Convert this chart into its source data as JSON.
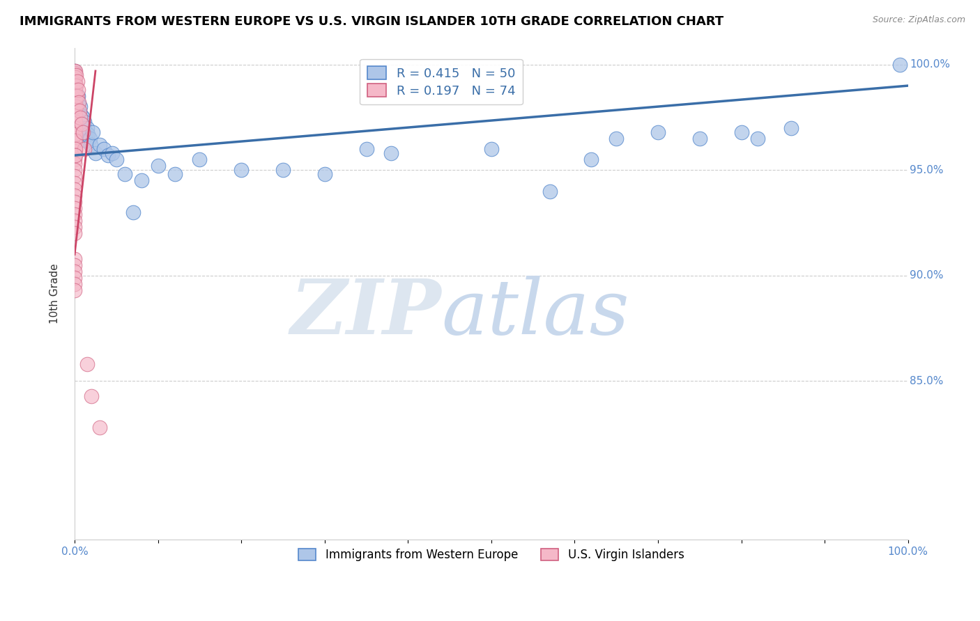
{
  "title": "IMMIGRANTS FROM WESTERN EUROPE VS U.S. VIRGIN ISLANDER 10TH GRADE CORRELATION CHART",
  "source": "Source: ZipAtlas.com",
  "ylabel": "10th Grade",
  "xlim": [
    0.0,
    1.0
  ],
  "ylim": [
    0.775,
    1.008
  ],
  "blue_R": 0.415,
  "blue_N": 50,
  "pink_R": 0.197,
  "pink_N": 74,
  "blue_color": "#aec6e8",
  "pink_color": "#f5b8c8",
  "blue_edge_color": "#5588cc",
  "pink_edge_color": "#d06080",
  "blue_line_color": "#3a6ea8",
  "pink_line_color": "#cc4466",
  "grid_color": "#cccccc",
  "tick_color": "#5588cc",
  "ytick_positions": [
    0.85,
    0.9,
    0.95,
    1.0
  ],
  "ytick_labels": [
    "85.0%",
    "90.0%",
    "95.0%",
    "100.0%"
  ],
  "blue_dots": [
    [
      0.0,
      0.997
    ],
    [
      0.0,
      0.996
    ],
    [
      0.0,
      0.994
    ],
    [
      0.004,
      0.985
    ],
    [
      0.004,
      0.982
    ],
    [
      0.005,
      0.978
    ],
    [
      0.006,
      0.975
    ],
    [
      0.007,
      0.98
    ],
    [
      0.008,
      0.976
    ],
    [
      0.009,
      0.972
    ],
    [
      0.009,
      0.969
    ],
    [
      0.01,
      0.975
    ],
    [
      0.01,
      0.971
    ],
    [
      0.01,
      0.968
    ],
    [
      0.012,
      0.973
    ],
    [
      0.012,
      0.97
    ],
    [
      0.013,
      0.967
    ],
    [
      0.014,
      0.964
    ],
    [
      0.015,
      0.97
    ],
    [
      0.016,
      0.967
    ],
    [
      0.018,
      0.965
    ],
    [
      0.019,
      0.962
    ],
    [
      0.022,
      0.968
    ],
    [
      0.025,
      0.958
    ],
    [
      0.03,
      0.962
    ],
    [
      0.035,
      0.96
    ],
    [
      0.04,
      0.957
    ],
    [
      0.045,
      0.958
    ],
    [
      0.05,
      0.955
    ],
    [
      0.06,
      0.948
    ],
    [
      0.07,
      0.93
    ],
    [
      0.08,
      0.945
    ],
    [
      0.1,
      0.952
    ],
    [
      0.12,
      0.948
    ],
    [
      0.15,
      0.955
    ],
    [
      0.2,
      0.95
    ],
    [
      0.25,
      0.95
    ],
    [
      0.3,
      0.948
    ],
    [
      0.35,
      0.96
    ],
    [
      0.38,
      0.958
    ],
    [
      0.5,
      0.96
    ],
    [
      0.57,
      0.94
    ],
    [
      0.62,
      0.955
    ],
    [
      0.65,
      0.965
    ],
    [
      0.7,
      0.968
    ],
    [
      0.75,
      0.965
    ],
    [
      0.8,
      0.968
    ],
    [
      0.82,
      0.965
    ],
    [
      0.86,
      0.97
    ],
    [
      0.99,
      1.0
    ]
  ],
  "pink_dots": [
    [
      0.0,
      0.997
    ],
    [
      0.0,
      0.996
    ],
    [
      0.0,
      0.995
    ],
    [
      0.0,
      0.994
    ],
    [
      0.0,
      0.993
    ],
    [
      0.0,
      0.992
    ],
    [
      0.0,
      0.991
    ],
    [
      0.0,
      0.99
    ],
    [
      0.0,
      0.988
    ],
    [
      0.0,
      0.986
    ],
    [
      0.0,
      0.985
    ],
    [
      0.0,
      0.983
    ],
    [
      0.0,
      0.981
    ],
    [
      0.0,
      0.979
    ],
    [
      0.0,
      0.977
    ],
    [
      0.0,
      0.975
    ],
    [
      0.0,
      0.973
    ],
    [
      0.0,
      0.971
    ],
    [
      0.0,
      0.969
    ],
    [
      0.0,
      0.967
    ],
    [
      0.0,
      0.965
    ],
    [
      0.0,
      0.963
    ],
    [
      0.0,
      0.961
    ],
    [
      0.0,
      0.959
    ],
    [
      0.0,
      0.957
    ],
    [
      0.0,
      0.955
    ],
    [
      0.0,
      0.953
    ],
    [
      0.0,
      0.95
    ],
    [
      0.0,
      0.947
    ],
    [
      0.0,
      0.944
    ],
    [
      0.0,
      0.941
    ],
    [
      0.0,
      0.938
    ],
    [
      0.0,
      0.935
    ],
    [
      0.0,
      0.932
    ],
    [
      0.0,
      0.929
    ],
    [
      0.0,
      0.926
    ],
    [
      0.0,
      0.923
    ],
    [
      0.0,
      0.92
    ],
    [
      0.001,
      0.997
    ],
    [
      0.001,
      0.994
    ],
    [
      0.001,
      0.991
    ],
    [
      0.001,
      0.988
    ],
    [
      0.001,
      0.985
    ],
    [
      0.001,
      0.982
    ],
    [
      0.001,
      0.979
    ],
    [
      0.001,
      0.976
    ],
    [
      0.001,
      0.973
    ],
    [
      0.001,
      0.97
    ],
    [
      0.001,
      0.967
    ],
    [
      0.001,
      0.964
    ],
    [
      0.002,
      0.995
    ],
    [
      0.002,
      0.99
    ],
    [
      0.002,
      0.985
    ],
    [
      0.002,
      0.98
    ],
    [
      0.003,
      0.992
    ],
    [
      0.003,
      0.985
    ],
    [
      0.004,
      0.988
    ],
    [
      0.005,
      0.982
    ],
    [
      0.006,
      0.978
    ],
    [
      0.007,
      0.975
    ],
    [
      0.008,
      0.972
    ],
    [
      0.01,
      0.968
    ],
    [
      0.012,
      0.96
    ],
    [
      0.015,
      0.858
    ],
    [
      0.02,
      0.843
    ],
    [
      0.03,
      0.828
    ],
    [
      0.0,
      0.908
    ],
    [
      0.0,
      0.905
    ],
    [
      0.0,
      0.902
    ],
    [
      0.0,
      0.899
    ],
    [
      0.001,
      0.96
    ],
    [
      0.001,
      0.957
    ],
    [
      0.0,
      0.896
    ],
    [
      0.0,
      0.893
    ]
  ],
  "blue_trendline_x": [
    0.0,
    1.0
  ],
  "blue_trendline_y": [
    0.957,
    0.99
  ],
  "pink_trendline_x": [
    0.0,
    0.025
  ],
  "pink_trendline_y": [
    0.91,
    0.997
  ]
}
